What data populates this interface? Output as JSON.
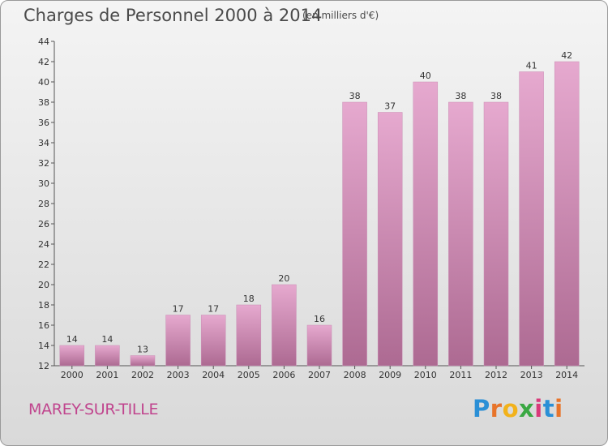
{
  "header": {
    "title": "Charges de Personnel 2000 à 2014",
    "unit": "(en milliers d'€)"
  },
  "footer": {
    "commune": "MAREY-SUR-TILLE",
    "logo_letters": [
      "P",
      "r",
      "o",
      "x",
      "i",
      "t",
      "i"
    ]
  },
  "colors": {
    "bar_light": "#e6a9cf",
    "bar_dark": "#ad6a92",
    "accent": "#c0458e",
    "logo": [
      "#2a8fd6",
      "#e8742a",
      "#f2b21b",
      "#3aa843",
      "#d93a7a",
      "#2a8fd6",
      "#e8742a"
    ]
  },
  "chart_data": {
    "type": "bar",
    "title": "Charges de Personnel 2000 à 2014",
    "xlabel": "",
    "ylabel": "",
    "categories": [
      "2000",
      "2001",
      "2002",
      "2003",
      "2004",
      "2005",
      "2006",
      "2007",
      "2008",
      "2009",
      "2010",
      "2011",
      "2012",
      "2013",
      "2014"
    ],
    "values": [
      14,
      14,
      13,
      17,
      17,
      18,
      20,
      16,
      38,
      37,
      40,
      38,
      38,
      41,
      42
    ],
    "ylim": [
      12,
      44
    ],
    "yticks": [
      12,
      14,
      16,
      18,
      20,
      22,
      24,
      26,
      28,
      30,
      32,
      34,
      36,
      38,
      40,
      42,
      44
    ],
    "grid": false,
    "legend": "none"
  }
}
